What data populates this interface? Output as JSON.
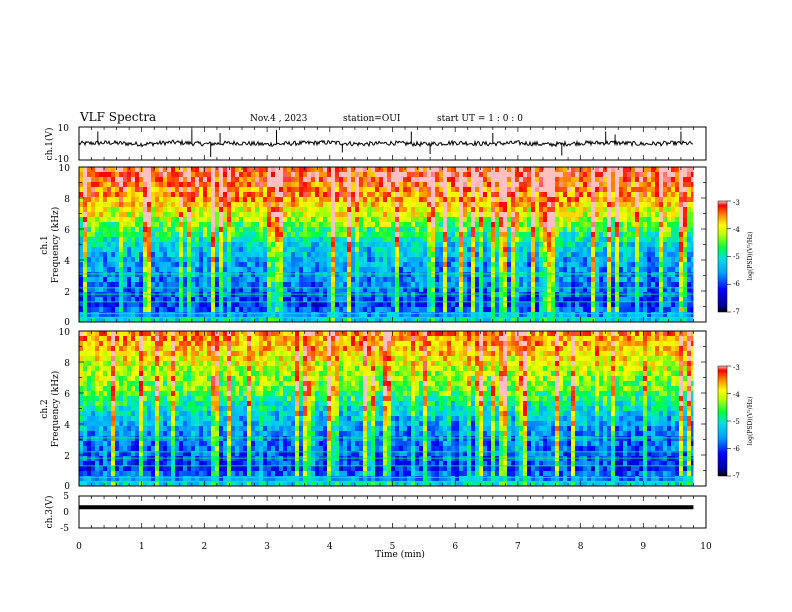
{
  "header": {
    "title": "VLF Spectra",
    "date": "Nov.4  , 2023",
    "station": "station=OUI",
    "start_ut": "start  UT =   1 : 0  : 0"
  },
  "chart_data": [
    {
      "type": "line",
      "panel": "ch1-waveform",
      "ylabel": "ch.1(V)",
      "ylim": [
        -10,
        10
      ],
      "yticks": [
        "10",
        "-10"
      ],
      "xlim": [
        0,
        10
      ],
      "baseline": 0,
      "trace_color": "#000000",
      "x": [
        0,
        0.5,
        1,
        1.5,
        2,
        2.5,
        3,
        3.5,
        4,
        4.5,
        5,
        5.5,
        6,
        6.5,
        7,
        7.5,
        8,
        8.5,
        9,
        9.5,
        9.8
      ],
      "y": [
        0,
        0.5,
        -0.5,
        0.8,
        -0.3,
        0.4,
        -0.6,
        0.2,
        0.7,
        -0.4,
        0.3,
        -0.5,
        0.6,
        -0.2,
        0.4,
        -0.7,
        0.3,
        0.5,
        -0.3,
        0.2,
        0
      ],
      "spikes": [
        {
          "x": 0.3,
          "y": 8
        },
        {
          "x": 1.8,
          "y": 9
        },
        {
          "x": 2.1,
          "y": -9
        },
        {
          "x": 2.25,
          "y": 7
        },
        {
          "x": 3.15,
          "y": 9
        },
        {
          "x": 4.2,
          "y": -6
        },
        {
          "x": 5.3,
          "y": 8
        },
        {
          "x": 5.6,
          "y": -7
        },
        {
          "x": 6.6,
          "y": 7
        },
        {
          "x": 7.7,
          "y": -8
        },
        {
          "x": 8.4,
          "y": 8
        },
        {
          "x": 8.55,
          "y": 6
        },
        {
          "x": 9.6,
          "y": 8
        }
      ]
    },
    {
      "type": "heatmap",
      "panel": "ch1-spectrogram",
      "ylabel": "ch.1",
      "ylabel2": "Frequency  (kHz)",
      "ylim": [
        0,
        10
      ],
      "yticks": [
        "0",
        "2",
        "4",
        "6",
        "8",
        "10"
      ],
      "xlim": [
        0,
        9.8
      ],
      "colorbar": {
        "label": "log(PSD)(V²/Hz)",
        "range": [
          -7,
          -3
        ],
        "ticks": [
          "-3",
          "-4",
          "-5",
          "-6",
          "-7"
        ]
      },
      "mean_log_psd_by_freq_khz": {
        "x": [
          0,
          1,
          2,
          3,
          4,
          5,
          6,
          7,
          8,
          9,
          10
        ],
        "y": [
          -5.0,
          -6.3,
          -6.0,
          -5.8,
          -5.7,
          -5.4,
          -4.8,
          -4.2,
          -3.7,
          -3.4,
          -3.3
        ]
      }
    },
    {
      "type": "heatmap",
      "panel": "ch2-spectrogram",
      "ylabel": "ch.2",
      "ylabel2": "Frequency  (kHz)",
      "ylim": [
        0,
        10
      ],
      "yticks": [
        "0",
        "2",
        "4",
        "6",
        "8",
        "10"
      ],
      "xlim": [
        0,
        9.8
      ],
      "colorbar": {
        "label": "log(PSD)(V²/Hz)",
        "range": [
          -7,
          -3
        ],
        "ticks": [
          "-3",
          "-4",
          "-5",
          "-6",
          "-7"
        ]
      },
      "mean_log_psd_by_freq_khz": {
        "x": [
          0,
          1,
          2,
          3,
          4,
          5,
          6,
          7,
          8,
          9,
          10
        ],
        "y": [
          -5.0,
          -6.3,
          -6.1,
          -5.9,
          -5.7,
          -5.3,
          -4.8,
          -4.5,
          -4.1,
          -3.8,
          -3.6
        ]
      }
    },
    {
      "type": "line",
      "panel": "ch3-waveform",
      "ylabel": "ch.3(V)",
      "ylim": [
        -5,
        5
      ],
      "yticks": [
        "5",
        "0",
        "-5"
      ],
      "xlim": [
        0,
        10
      ],
      "xlabel": "Time  (min)",
      "xticks": [
        "0",
        "1",
        "2",
        "3",
        "4",
        "5",
        "6",
        "7",
        "8",
        "9",
        "10"
      ],
      "trace_color": "#000000",
      "x": [
        0,
        9.8
      ],
      "y": [
        1.5,
        1.5
      ]
    }
  ]
}
